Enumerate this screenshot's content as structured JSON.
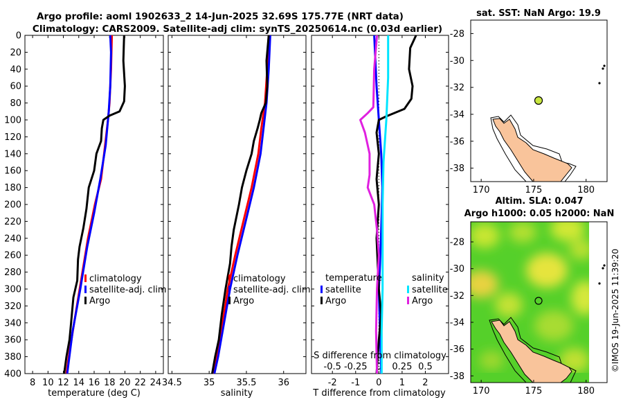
{
  "title_line1": "Argo profile: aoml 1902633_2 14-Jun-2025 32.69S 175.77E (NRT data)",
  "title_line2": "Climatology: CARS2009. Satellite-adj clim: synTS_20250614.nc (0.03d earlier)",
  "watermark": "©IMOS 19-Jun-2025 11:39:20",
  "colors": {
    "climatology": "#ff0000",
    "satellite": "#0000ff",
    "argo": "#000000",
    "sal_satellite": "#00e5ff",
    "sal_argo": "#e020e0",
    "land": "#f9c49b"
  },
  "legend_profiles": {
    "climatology": "climatology",
    "satellite_temp": "satellite-adj. clim",
    "satellite_sal": "satellite-adj. clim",
    "argo": "Argo"
  },
  "legend_diff": {
    "temperature_header": "temperature",
    "salinity_header": "salinity",
    "satellite": "satellite",
    "argo": "Argo"
  },
  "chart_data": [
    {
      "type": "line",
      "name": "temperature-profile",
      "xlabel": "temperature (deg C)",
      "ylabel": "",
      "xlim": [
        7,
        25
      ],
      "ylim": [
        0,
        400
      ],
      "xticks": [
        "8",
        "10",
        "12",
        "14",
        "16",
        "18",
        "20",
        "22",
        "24"
      ],
      "yticks": [
        "0",
        "20",
        "40",
        "60",
        "80",
        "100",
        "120",
        "140",
        "160",
        "180",
        "200",
        "220",
        "240",
        "260",
        "280",
        "300",
        "320",
        "340",
        "360",
        "380",
        "400"
      ],
      "series": [
        {
          "name": "climatology",
          "color": "red",
          "points": [
            [
              18.3,
              0
            ],
            [
              18.2,
              40
            ],
            [
              18.0,
              80
            ],
            [
              17.8,
              100
            ],
            [
              17.3,
              140
            ],
            [
              16.9,
              170
            ],
            [
              16.1,
              200
            ],
            [
              15.2,
              240
            ],
            [
              14.3,
              290
            ],
            [
              13.4,
              340
            ],
            [
              12.7,
              380
            ],
            [
              12.4,
              400
            ]
          ]
        },
        {
          "name": "satellite-adj. clim",
          "color": "blue",
          "points": [
            [
              18.1,
              0
            ],
            [
              18.2,
              20
            ],
            [
              18.1,
              60
            ],
            [
              17.9,
              90
            ],
            [
              17.5,
              130
            ],
            [
              16.8,
              170
            ],
            [
              16.0,
              210
            ],
            [
              15.1,
              250
            ],
            [
              14.2,
              300
            ],
            [
              13.2,
              350
            ],
            [
              12.5,
              400
            ]
          ]
        },
        {
          "name": "Argo",
          "color": "black",
          "points": [
            [
              19.9,
              0
            ],
            [
              19.8,
              30
            ],
            [
              20.0,
              60
            ],
            [
              19.9,
              78
            ],
            [
              19.3,
              90
            ],
            [
              18.0,
              95
            ],
            [
              17.2,
              100
            ],
            [
              17.0,
              110
            ],
            [
              16.9,
              125
            ],
            [
              16.3,
              140
            ],
            [
              16.0,
              160
            ],
            [
              15.3,
              180
            ],
            [
              15.0,
              205
            ],
            [
              14.6,
              228
            ],
            [
              14.1,
              250
            ],
            [
              13.9,
              265
            ],
            [
              13.8,
              290
            ],
            [
              13.3,
              310
            ],
            [
              13.0,
              340
            ],
            [
              12.8,
              360
            ],
            [
              12.4,
              380
            ],
            [
              12.1,
              400
            ]
          ]
        }
      ]
    },
    {
      "type": "line",
      "name": "salinity-profile",
      "xlabel": "salinity",
      "ylabel": "",
      "xlim": [
        34.45,
        36.3
      ],
      "xticks": [
        "34.5",
        "35",
        "35.5",
        "36"
      ],
      "series": [
        {
          "name": "climatology",
          "color": "red",
          "points": [
            [
              35.8,
              0
            ],
            [
              35.78,
              40
            ],
            [
              35.75,
              80
            ],
            [
              35.7,
              110
            ],
            [
              35.66,
              140
            ],
            [
              35.57,
              180
            ],
            [
              35.46,
              220
            ],
            [
              35.35,
              260
            ],
            [
              35.25,
              300
            ],
            [
              35.18,
              340
            ],
            [
              35.1,
              380
            ],
            [
              35.05,
              400
            ]
          ]
        },
        {
          "name": "satellite-adj. clim",
          "color": "blue",
          "points": [
            [
              35.82,
              0
            ],
            [
              35.8,
              40
            ],
            [
              35.77,
              80
            ],
            [
              35.73,
              110
            ],
            [
              35.69,
              140
            ],
            [
              35.6,
              180
            ],
            [
              35.49,
              220
            ],
            [
              35.38,
              260
            ],
            [
              35.28,
              300
            ],
            [
              35.2,
              340
            ],
            [
              35.12,
              380
            ],
            [
              35.07,
              400
            ]
          ]
        },
        {
          "name": "Argo",
          "color": "black",
          "points": [
            [
              35.8,
              0
            ],
            [
              35.77,
              30
            ],
            [
              35.78,
              60
            ],
            [
              35.76,
              80
            ],
            [
              35.7,
              92
            ],
            [
              35.68,
              100
            ],
            [
              35.65,
              110
            ],
            [
              35.6,
              125
            ],
            [
              35.57,
              140
            ],
            [
              35.5,
              160
            ],
            [
              35.44,
              180
            ],
            [
              35.4,
              200
            ],
            [
              35.33,
              230
            ],
            [
              35.3,
              250
            ],
            [
              35.28,
              270
            ],
            [
              35.22,
              300
            ],
            [
              35.17,
              330
            ],
            [
              35.13,
              360
            ],
            [
              35.08,
              380
            ],
            [
              35.04,
              400
            ]
          ]
        }
      ]
    },
    {
      "type": "line",
      "name": "difference-from-climatology",
      "xlabel": "T difference from climatology",
      "x2label": "S difference from climatology",
      "xlim": [
        -2.9,
        3.0
      ],
      "x2lim": [
        -0.725,
        0.75
      ],
      "xticks": [
        "-2",
        "-1",
        "0",
        "1",
        "2"
      ],
      "x2ticks": [
        "-0.5",
        "-0.25",
        "0",
        "0.25",
        "0.5"
      ],
      "series": [
        {
          "name": "temperature satellite",
          "color": "blue",
          "axis": "T",
          "points": [
            [
              -0.2,
              0
            ],
            [
              -0.1,
              60
            ],
            [
              0.0,
              100
            ],
            [
              0.1,
              140
            ],
            [
              0.15,
              180
            ],
            [
              0.1,
              230
            ],
            [
              0.05,
              270
            ],
            [
              0.0,
              300
            ],
            [
              0.05,
              350
            ],
            [
              0.1,
              400
            ]
          ]
        },
        {
          "name": "temperature Argo",
          "color": "black",
          "axis": "T",
          "points": [
            [
              1.6,
              0
            ],
            [
              1.5,
              6
            ],
            [
              1.35,
              15
            ],
            [
              1.3,
              40
            ],
            [
              1.45,
              60
            ],
            [
              1.4,
              75
            ],
            [
              1.1,
              87
            ],
            [
              0.3,
              96
            ],
            [
              0.0,
              100
            ],
            [
              -0.1,
              115
            ],
            [
              0.0,
              140
            ],
            [
              -0.1,
              170
            ],
            [
              0.0,
              200
            ],
            [
              -0.1,
              240
            ],
            [
              0.0,
              300
            ],
            [
              0.1,
              330
            ],
            [
              0.0,
              360
            ],
            [
              -0.1,
              400
            ]
          ]
        },
        {
          "name": "salinity satellite",
          "color": "cyan",
          "axis": "S",
          "points": [
            [
              0.1,
              0
            ],
            [
              0.1,
              50
            ],
            [
              0.08,
              100
            ],
            [
              0.05,
              150
            ],
            [
              0.04,
              200
            ],
            [
              0.04,
              250
            ],
            [
              0.04,
              300
            ],
            [
              0.03,
              350
            ],
            [
              0.03,
              400
            ]
          ]
        },
        {
          "name": "salinity Argo",
          "color": "magenta",
          "axis": "S",
          "points": [
            [
              -0.02,
              0
            ],
            [
              -0.05,
              40
            ],
            [
              -0.06,
              85
            ],
            [
              -0.12,
              92
            ],
            [
              -0.2,
              100
            ],
            [
              -0.15,
              115
            ],
            [
              -0.1,
              140
            ],
            [
              -0.1,
              165
            ],
            [
              -0.12,
              180
            ],
            [
              -0.05,
              200
            ],
            [
              -0.02,
              230
            ],
            [
              0.0,
              260
            ],
            [
              -0.02,
              300
            ],
            [
              -0.03,
              350
            ],
            [
              -0.02,
              400
            ]
          ]
        }
      ]
    },
    {
      "type": "map",
      "name": "sst-map",
      "title": "sat. SST: NaN Argo: 19.9",
      "xlim": [
        169,
        182
      ],
      "ylim": [
        -39,
        -27
      ],
      "xticks": [
        "170",
        "175",
        "180"
      ],
      "yticks": [
        "-28",
        "-30",
        "-32",
        "-34",
        "-36",
        "-38"
      ],
      "float_position": {
        "lon": 175.77,
        "lat": -32.69
      }
    },
    {
      "type": "map",
      "name": "sla-map",
      "title_line1": "Altim. SLA: 0.047",
      "title_line2": "Argo h1000: 0.05 h2000: NaN",
      "xlim": [
        169,
        182
      ],
      "ylim": [
        -38.5,
        -26.5
      ],
      "xticks": [
        "170",
        "175",
        "180"
      ],
      "yticks": [
        "-28",
        "-30",
        "-32",
        "-34",
        "-36",
        "-38"
      ],
      "float_position": {
        "lon": 175.77,
        "lat": -32.69
      }
    }
  ]
}
